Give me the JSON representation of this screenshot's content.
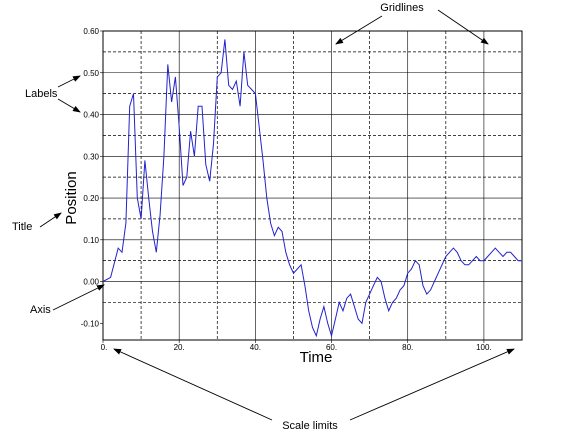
{
  "chart_data": {
    "type": "line",
    "xlabel": "Time",
    "ylabel": "Position",
    "xlim": [
      0,
      110
    ],
    "ylim": [
      -0.14,
      0.6
    ],
    "x_ticks": [
      0,
      20,
      40,
      60,
      80,
      100
    ],
    "x_tick_labels": [
      "0.",
      "20.",
      "40.",
      "60.",
      "80.",
      "100."
    ],
    "y_ticks": [
      -0.1,
      0,
      0.1,
      0.2,
      0.3,
      0.4,
      0.5,
      0.6
    ],
    "y_tick_labels": [
      "-0.10",
      "0.00",
      "0.10",
      "0.20",
      "0.30",
      "0.40",
      "0.50",
      "0.60"
    ],
    "grid": {
      "major_x": [
        20,
        40,
        60,
        80,
        100
      ],
      "minor_x": [
        10,
        30,
        50,
        70,
        90
      ],
      "major_y": [
        0,
        0.1,
        0.2,
        0.3,
        0.4,
        0.5
      ],
      "minor_y": [
        -0.05,
        0.05,
        0.15,
        0.25,
        0.35,
        0.45,
        0.55
      ]
    },
    "line_color": "#2222cc",
    "x": [
      0,
      2,
      4,
      5,
      6,
      7,
      8,
      9,
      10,
      11,
      12,
      13,
      14,
      15,
      16,
      17,
      18,
      19,
      20,
      21,
      22,
      23,
      24,
      25,
      26,
      27,
      28,
      29,
      30,
      31,
      32,
      33,
      34,
      35,
      36,
      37,
      38,
      39,
      40,
      41,
      42,
      43,
      44,
      45,
      46,
      47,
      48,
      49,
      50,
      51,
      52,
      53,
      54,
      55,
      56,
      57,
      58,
      59,
      60,
      61,
      62,
      63,
      64,
      65,
      66,
      67,
      68,
      69,
      70,
      71,
      72,
      73,
      74,
      75,
      76,
      77,
      78,
      79,
      80,
      81,
      82,
      83,
      84,
      85,
      86,
      87,
      88,
      89,
      90,
      91,
      92,
      93,
      94,
      95,
      96,
      97,
      98,
      99,
      100,
      101,
      102,
      103,
      104,
      105,
      106,
      107,
      108,
      109,
      110
    ],
    "values": [
      0.0,
      0.01,
      0.08,
      0.07,
      0.14,
      0.42,
      0.45,
      0.2,
      0.15,
      0.29,
      0.2,
      0.12,
      0.07,
      0.16,
      0.3,
      0.52,
      0.43,
      0.49,
      0.37,
      0.23,
      0.25,
      0.36,
      0.3,
      0.42,
      0.42,
      0.28,
      0.24,
      0.33,
      0.49,
      0.5,
      0.58,
      0.47,
      0.46,
      0.48,
      0.42,
      0.55,
      0.47,
      0.46,
      0.45,
      0.37,
      0.29,
      0.2,
      0.14,
      0.11,
      0.13,
      0.12,
      0.07,
      0.04,
      0.02,
      0.03,
      0.04,
      -0.01,
      -0.07,
      -0.11,
      -0.13,
      -0.09,
      -0.06,
      -0.1,
      -0.13,
      -0.09,
      -0.05,
      -0.07,
      -0.04,
      -0.03,
      -0.06,
      -0.09,
      -0.1,
      -0.05,
      -0.03,
      -0.01,
      0.01,
      0.0,
      -0.04,
      -0.07,
      -0.05,
      -0.04,
      -0.02,
      -0.01,
      0.02,
      0.03,
      0.05,
      0.04,
      -0.01,
      -0.03,
      -0.02,
      0.0,
      0.02,
      0.04,
      0.06,
      0.07,
      0.08,
      0.07,
      0.05,
      0.04,
      0.04,
      0.05,
      0.06,
      0.05,
      0.05,
      0.06,
      0.07,
      0.08,
      0.07,
      0.06,
      0.07,
      0.07,
      0.06,
      0.05,
      0.05
    ]
  },
  "annotations": {
    "gridlines": "Gridlines",
    "labels": "Labels",
    "title": "Title",
    "axis": "Axis",
    "scale_limits": "Scale limits"
  }
}
